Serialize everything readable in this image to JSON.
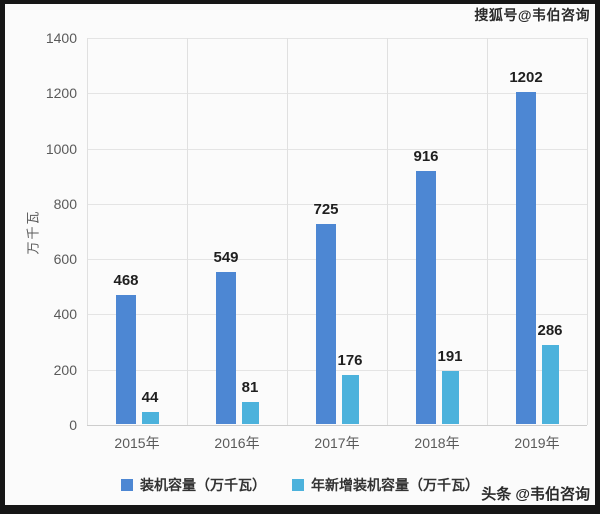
{
  "watermarks": {
    "top_right": "搜狐号@韦伯咨询",
    "bottom_right": "头条 @韦伯咨询"
  },
  "chart_data": {
    "type": "bar",
    "title": "",
    "categories": [
      "2015年",
      "2016年",
      "2017年",
      "2018年",
      "2019年"
    ],
    "series": [
      {
        "name": "装机容量（万千瓦）",
        "values": [
          468,
          549,
          725,
          916,
          1202
        ],
        "color": "#4d87d3"
      },
      {
        "name": "年新增装机容量（万千瓦）",
        "values": [
          44,
          81,
          176,
          191,
          286
        ],
        "color": "#4cb2dc"
      }
    ],
    "xlabel": "",
    "ylabel": "万千瓦",
    "ylim": [
      0,
      1400
    ],
    "yticks": [
      0,
      200,
      400,
      600,
      800,
      1000,
      1200,
      1400
    ],
    "grid": true,
    "legend_position": "bottom",
    "value_labels": true
  },
  "colors": {
    "frame_border": "#161616",
    "background": "#fbfbfb",
    "grid": "#e4e4e4",
    "axis_text": "#5a5a5a",
    "value_text": "#1f1f1f"
  }
}
